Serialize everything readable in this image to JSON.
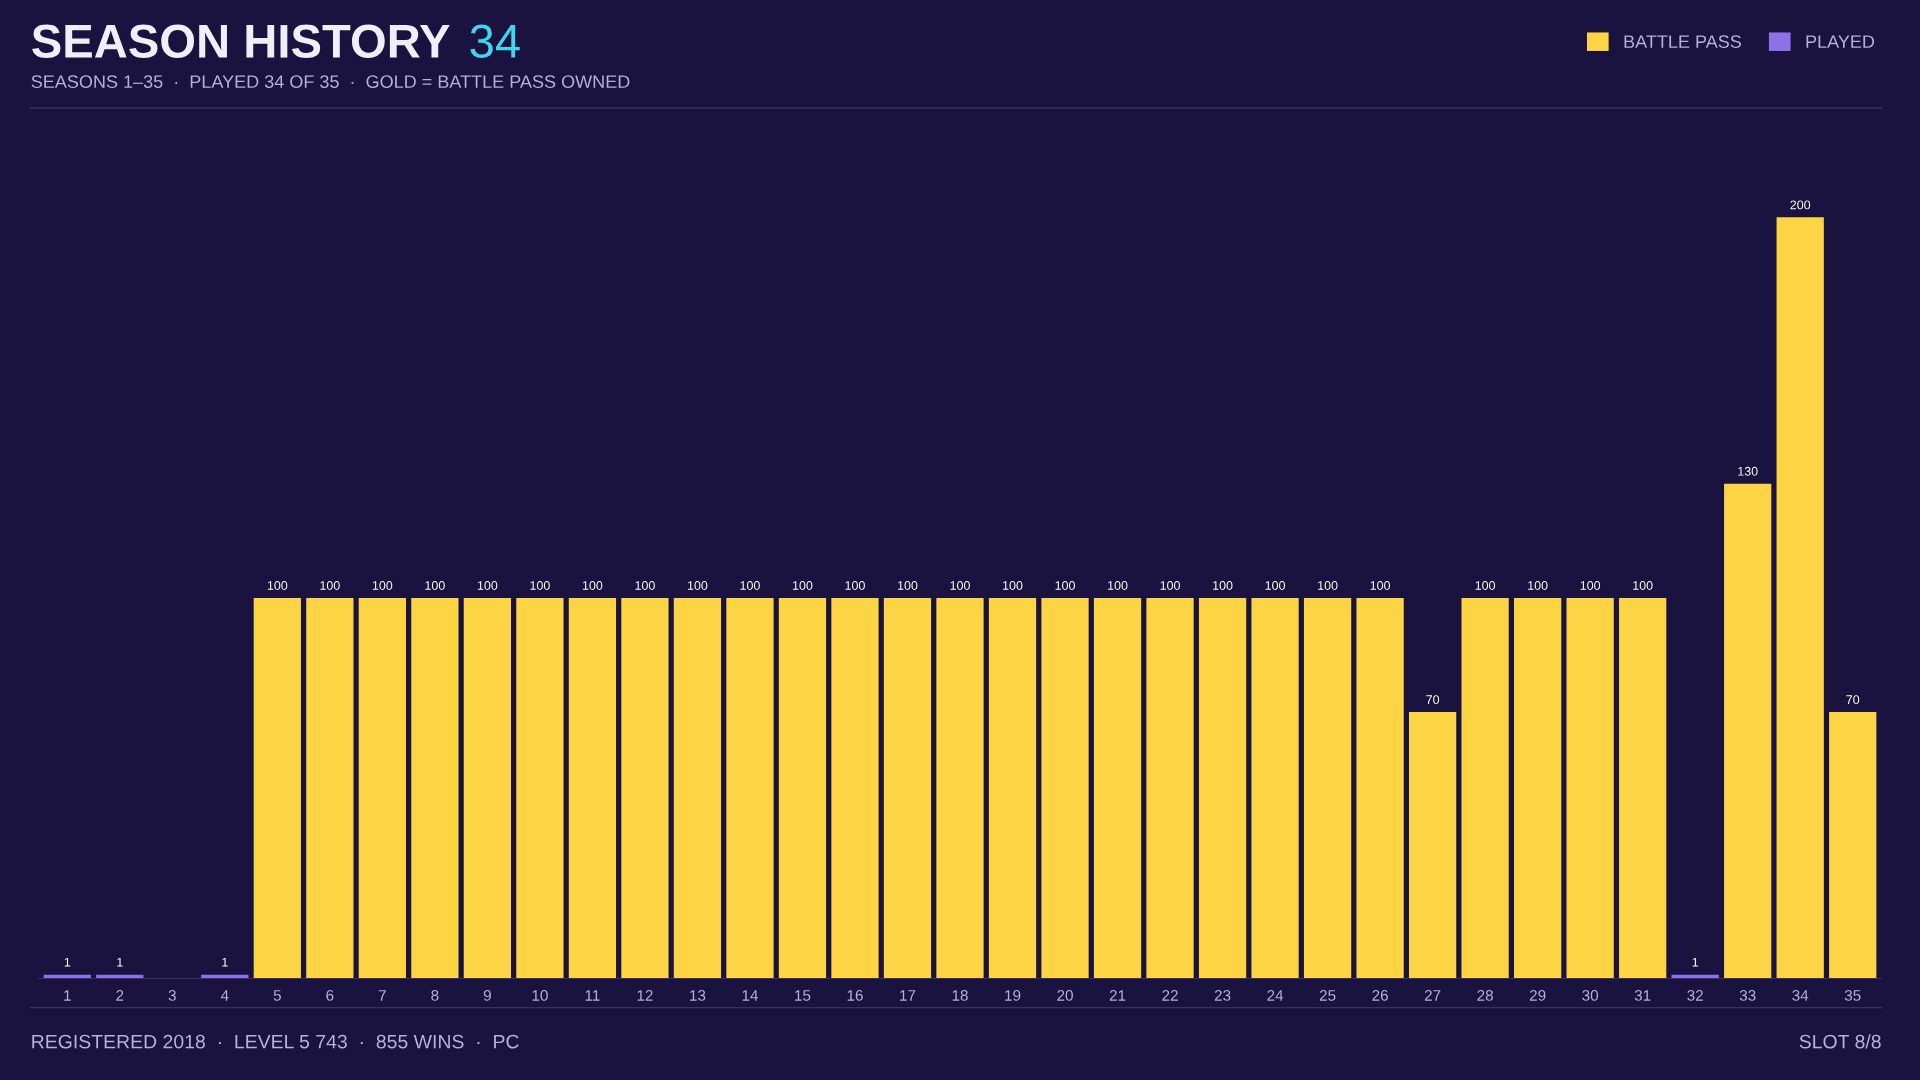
{
  "chart_data": {
    "type": "bar",
    "title": "SEASON HISTORY",
    "subtitle": "SEASONS 1–35  ·  PLAYED 34 OF 35  ·  GOLD = BATTLE PASS OWNED",
    "annotations": [
      "34",
      "REGISTERED 2018  ·  LEVEL 5 743  ·  855 WINS  ·  PC",
      "SLOT 8/8"
    ],
    "categories": [
      "1",
      "2",
      "3",
      "4",
      "5",
      "6",
      "7",
      "8",
      "9",
      "10",
      "11",
      "12",
      "13",
      "14",
      "15",
      "16",
      "17",
      "18",
      "19",
      "20",
      "21",
      "22",
      "23",
      "24",
      "25",
      "26",
      "27",
      "28",
      "29",
      "30",
      "31",
      "32",
      "33",
      "34",
      "35"
    ],
    "series": [
      {
        "name": "BATTLE PASS",
        "color": "#fdd443",
        "values": [
          null,
          null,
          null,
          null,
          100,
          100,
          100,
          100,
          100,
          100,
          100,
          100,
          100,
          100,
          100,
          100,
          100,
          100,
          100,
          100,
          100,
          100,
          100,
          100,
          100,
          100,
          70,
          100,
          100,
          100,
          100,
          null,
          130,
          200,
          70
        ]
      },
      {
        "name": "PLAYED",
        "color": "#8b72e8",
        "values": [
          1,
          1,
          null,
          1,
          null,
          null,
          null,
          null,
          null,
          null,
          null,
          null,
          null,
          null,
          null,
          null,
          null,
          null,
          null,
          null,
          null,
          null,
          null,
          null,
          null,
          null,
          null,
          null,
          null,
          null,
          null,
          1,
          null,
          null,
          null
        ]
      }
    ],
    "data_labels": true,
    "legend": "top right",
    "grid": false
  }
}
